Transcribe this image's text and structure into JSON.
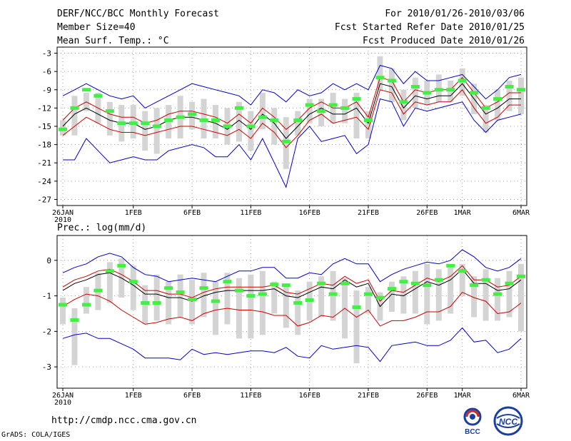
{
  "header": {
    "title": "DERF/NCC/BCC Monthly Forecast",
    "member_size": "Member Size=40",
    "variable": "Mean Surf. Temp.: °C",
    "period": "For 2010/01/26-2010/03/06",
    "refer_date": "Fcst Started Refer Date 2010/01/25",
    "produced_date": "Fcst Produced Date 2010/01/26"
  },
  "footer": {
    "url": "http://cmdp.ncc.cma.gov.cn",
    "grads": "GrADS: COLA/IGES",
    "logo1_text": "BCC",
    "logo2_text": "NCC"
  },
  "colors": {
    "mean": "#000000",
    "spread": "#cc0000",
    "extreme": "#0000cc",
    "box": "#d4d4d4",
    "marker": "#44ee44"
  },
  "chart_data": [
    {
      "type": "line",
      "title": "Mean Surf. Temp.: °C",
      "x_start": "2010-01-26",
      "n_days": 40,
      "x_ticks": [
        "26JAN",
        "1FEB",
        "6FEB",
        "11FEB",
        "16FEB",
        "21FEB",
        "26FEB",
        "1MAR",
        "6MAR"
      ],
      "x_tick_days": [
        0,
        6,
        11,
        16,
        21,
        26,
        31,
        34,
        39
      ],
      "x_year_label": "2010",
      "ylim": [
        -28,
        -2
      ],
      "yticks": [
        -3,
        -6,
        -9,
        -12,
        -15,
        -18,
        -21,
        -24,
        -27
      ],
      "ytick_labels": [
        "-3",
        "-6",
        "-9",
        "-12",
        "-15",
        "-18",
        "-21",
        "-24",
        "-27"
      ],
      "series": [
        {
          "name": "max",
          "color": "#0000cc",
          "values": [
            -10,
            -9,
            -8,
            -9,
            -10,
            -10.5,
            -10,
            -12,
            -11,
            -10,
            -9,
            -8,
            -8.5,
            -9,
            -9.5,
            -10,
            -11.5,
            -9,
            -9.5,
            -11,
            -9,
            -10,
            -9.5,
            -8,
            -9,
            -8,
            -9,
            -5,
            -5.5,
            -8,
            -6,
            -7.5,
            -7.5,
            -7,
            -6.5,
            -8.5,
            -10.5,
            -9,
            -7,
            -6.5
          ]
        },
        {
          "name": "upper",
          "color": "#cc0000",
          "values": [
            -14,
            -12,
            -11,
            -12,
            -13,
            -13.5,
            -13.5,
            -14.5,
            -14,
            -13,
            -12.5,
            -12.5,
            -13,
            -13.5,
            -14.5,
            -13,
            -14.5,
            -12,
            -13.5,
            -15.5,
            -14,
            -12,
            -11,
            -12,
            -12,
            -11,
            -13.5,
            -7,
            -7.5,
            -11,
            -9,
            -9.5,
            -9,
            -9,
            -7,
            -9.5,
            -12,
            -11,
            -9.5,
            -9.5
          ]
        },
        {
          "name": "mean",
          "color": "#000000",
          "values": [
            -15,
            -13,
            -12,
            -13,
            -14,
            -14.5,
            -14.5,
            -15.5,
            -15,
            -14,
            -13.5,
            -13.5,
            -14,
            -14.5,
            -15.5,
            -14,
            -15.5,
            -13,
            -14.5,
            -17,
            -15,
            -13,
            -12,
            -13,
            -13,
            -12,
            -14.5,
            -8,
            -8.5,
            -12,
            -10,
            -10.5,
            -10,
            -10,
            -8,
            -10.5,
            -13,
            -12,
            -10.5,
            -10.5
          ]
        },
        {
          "name": "lower",
          "color": "#cc0000",
          "values": [
            -16.5,
            -15,
            -13.5,
            -14.5,
            -15.5,
            -16,
            -16,
            -16.5,
            -16,
            -15.5,
            -15,
            -15,
            -15.5,
            -16,
            -16.5,
            -15.5,
            -17,
            -14.5,
            -16,
            -18.5,
            -16.5,
            -14,
            -13,
            -14.5,
            -14,
            -13.5,
            -15.5,
            -9,
            -9.5,
            -13,
            -11,
            -11.5,
            -11,
            -11,
            -9,
            -12,
            -14.5,
            -13.5,
            -11.5,
            -11.5
          ]
        },
        {
          "name": "min",
          "color": "#0000cc",
          "values": [
            -20.5,
            -20.5,
            -17,
            -19,
            -21,
            -20.5,
            -20,
            -20.5,
            -20.5,
            -19,
            -18.5,
            -18,
            -18.5,
            -20,
            -20,
            -18,
            -20.5,
            -17,
            -21,
            -25,
            -17,
            -15,
            -17.5,
            -17,
            -16.5,
            -19.5,
            -18,
            -10.5,
            -11,
            -15,
            -12,
            -12.5,
            -12,
            -11.5,
            -11,
            -14,
            -16,
            -14,
            -13.5,
            -13
          ]
        }
      ],
      "boxes_low": [
        -16.5,
        -16.5,
        -12.5,
        -14.5,
        -16.5,
        -17.5,
        -17,
        -19,
        -19.5,
        -17,
        -17,
        -15.5,
        -17,
        -17,
        -18,
        -17.5,
        -19,
        -15.5,
        -18,
        -22,
        -16.5,
        -14.5,
        -15,
        -14.5,
        -14.5,
        -17,
        -17,
        -9,
        -11,
        -14,
        -12,
        -11.5,
        -11,
        -11,
        -10,
        -13,
        -16,
        -14,
        -12.5,
        -13
      ],
      "boxes_high": [
        -14,
        -10,
        -9.5,
        -9.5,
        -11,
        -11.5,
        -11.5,
        -12.5,
        -12,
        -11.5,
        -10,
        -11,
        -10.5,
        -11.5,
        -12,
        -11,
        -12.5,
        -9.5,
        -12,
        -13.5,
        -12.5,
        -10.5,
        -10.5,
        -9.5,
        -10.5,
        -9.5,
        -12.5,
        -3.5,
        -5.5,
        -9,
        -7,
        -7.5,
        -6.5,
        -7.5,
        -5.5,
        -8,
        -11.5,
        -9,
        -7.5,
        -7
      ],
      "markers": [
        -15.5,
        -12,
        -9,
        -10,
        -12.5,
        -14.5,
        -14.5,
        -14.5,
        -15,
        -14,
        -13.5,
        -13,
        -14,
        -14,
        -15,
        -12,
        -15,
        -13.5,
        -14,
        -17.5,
        -14,
        -11.5,
        -12.5,
        -11.5,
        -12,
        -10.5,
        -14,
        -7,
        -7.5,
        -11,
        -8.5,
        -9.5,
        -9,
        -9,
        -7.5,
        -9.5,
        -12,
        -10.5,
        -8.5,
        -9
      ]
    },
    {
      "type": "line",
      "title": "Prec.: log(mm/d)",
      "x_start": "2010-01-26",
      "n_days": 40,
      "x_ticks": [
        "26JAN",
        "1FEB",
        "6FEB",
        "11FEB",
        "16FEB",
        "21FEB",
        "26FEB",
        "1MAR",
        "6MAR"
      ],
      "x_tick_days": [
        0,
        6,
        11,
        16,
        21,
        26,
        31,
        34,
        39
      ],
      "x_year_label": "2010",
      "ylim": [
        -3.6,
        0.7
      ],
      "yticks": [
        0,
        -1,
        -2,
        -3
      ],
      "ytick_labels": [
        "0",
        "-1",
        "-2",
        "-3"
      ],
      "series": [
        {
          "name": "max",
          "color": "#0000cc",
          "values": [
            -0.35,
            -0.2,
            -0.1,
            0.1,
            0.2,
            0.1,
            -0.2,
            -0.4,
            -0.45,
            -0.6,
            -0.55,
            -0.5,
            -0.55,
            -0.6,
            -0.45,
            -0.3,
            -0.3,
            -0.2,
            -0.2,
            -0.5,
            -0.5,
            -0.35,
            -0.4,
            -0.1,
            0.05,
            -0.1,
            -0.1,
            -0.6,
            -0.4,
            -0.25,
            -0.15,
            -0.05,
            -0.1,
            0,
            0.3,
            0.1,
            -0.2,
            -0.3,
            -0.2,
            0.05
          ]
        },
        {
          "name": "upper",
          "color": "#cc0000",
          "values": [
            -0.75,
            -0.55,
            -0.45,
            -0.3,
            -0.25,
            -0.4,
            -0.6,
            -0.85,
            -0.85,
            -0.95,
            -0.95,
            -1.05,
            -0.9,
            -0.8,
            -0.75,
            -0.75,
            -0.75,
            -0.75,
            -0.7,
            -0.9,
            -0.95,
            -0.8,
            -0.65,
            -0.7,
            -0.45,
            -0.65,
            -0.55,
            -1.15,
            -0.85,
            -0.9,
            -0.7,
            -0.5,
            -0.6,
            -0.45,
            -0.15,
            -0.55,
            -0.55,
            -0.75,
            -0.7,
            -0.45
          ]
        },
        {
          "name": "mean",
          "color": "#000000",
          "values": [
            -0.85,
            -0.65,
            -0.55,
            -0.4,
            -0.35,
            -0.5,
            -0.7,
            -0.95,
            -0.95,
            -1.05,
            -1.05,
            -1.15,
            -1,
            -0.9,
            -0.85,
            -0.85,
            -0.85,
            -0.85,
            -0.8,
            -1,
            -1.05,
            -0.9,
            -0.75,
            -0.8,
            -0.55,
            -0.75,
            -0.65,
            -1.3,
            -0.95,
            -1,
            -0.8,
            -0.6,
            -0.7,
            -0.55,
            -0.25,
            -0.65,
            -0.65,
            -0.85,
            -0.8,
            -0.55
          ]
        },
        {
          "name": "lower",
          "color": "#cc0000",
          "values": [
            -1.3,
            -1.1,
            -0.95,
            -1,
            -1.15,
            -1.4,
            -1.6,
            -1.8,
            -1.75,
            -1.65,
            -1.6,
            -1.7,
            -1.5,
            -1.4,
            -1.35,
            -1.4,
            -1.4,
            -1.45,
            -1.55,
            -1.55,
            -1.85,
            -1.75,
            -1.55,
            -1.6,
            -1.35,
            -1.6,
            -1.4,
            -1.85,
            -1.7,
            -1.7,
            -1.6,
            -1.45,
            -1.45,
            -1.3,
            -0.9,
            -1.05,
            -1.15,
            -1.5,
            -1.45,
            -1.2
          ]
        },
        {
          "name": "min",
          "color": "#0000cc",
          "values": [
            -2.2,
            -2.1,
            -2.05,
            -2.2,
            -2.2,
            -2.35,
            -2.5,
            -2.75,
            -2.75,
            -2.75,
            -2.8,
            -2.5,
            -2.65,
            -2.6,
            -2.65,
            -2.6,
            -2.55,
            -2.55,
            -2.6,
            -2.45,
            -2.7,
            -2.75,
            -2.4,
            -2.5,
            -2.45,
            -2.4,
            -2.45,
            -2.85,
            -2.4,
            -2.35,
            -2.3,
            -2.4,
            -2.4,
            -2.25,
            -1.9,
            -2.3,
            -2.25,
            -2.6,
            -2.5,
            -2.2
          ]
        },
        {
          "name": "mean_ref",
          "color": "#000000",
          "values": [
            -0.85,
            -0.65,
            -0.55,
            -0.4,
            -0.35,
            -0.5,
            -0.7,
            -0.95,
            -0.95,
            -1.05,
            -1.05,
            -1.15,
            -1,
            -0.9,
            -0.85,
            -0.85,
            -0.85,
            -0.85,
            -0.8,
            -1,
            -1.05,
            -0.9,
            -0.75,
            -0.8,
            -0.55,
            -0.75,
            -0.65,
            -1.3,
            -0.95,
            -1,
            -0.8,
            -0.6,
            -0.7,
            -0.55,
            -0.25,
            -0.65,
            -0.65,
            -0.85,
            -0.8,
            -0.55
          ]
        }
      ],
      "boxes_low": [
        -1.8,
        -2.95,
        -1.5,
        -1.4,
        -1.2,
        -1.05,
        -1.4,
        -1.8,
        -1.7,
        -1.8,
        -1.6,
        -1.8,
        -1.6,
        -2.1,
        -1.8,
        -2.2,
        -2.2,
        -2.1,
        -1.5,
        -1.9,
        -2.1,
        -1.7,
        -1.6,
        -1.7,
        -2.2,
        -2.9,
        -1.5,
        -1.7,
        -1.45,
        -1.5,
        -1.5,
        -1.8,
        -1.7,
        -1.5,
        -1,
        -1.6,
        -1.7,
        -1.7,
        -1.6,
        -2
      ],
      "boxes_high": [
        -1.05,
        -1.35,
        -0.75,
        -0.35,
        -0.05,
        0.05,
        -0.15,
        -0.7,
        -0.4,
        -0.6,
        -0.4,
        -0.55,
        -0.35,
        -0.6,
        -0.35,
        -0.5,
        -0.4,
        -0.3,
        -0.6,
        -0.7,
        -0.85,
        -0.6,
        -0.45,
        -0.3,
        -0.5,
        -0.85,
        -0.75,
        -0.9,
        -0.6,
        -0.45,
        -0.3,
        -0.1,
        -0.25,
        -0.2,
        -0.1,
        -0.45,
        -0.25,
        -0.5,
        -0.3,
        -0.1
      ],
      "markers": [
        -1.25,
        -1.68,
        -1.25,
        -0.85,
        -0.3,
        -0.15,
        -0.6,
        -1.2,
        -1.2,
        -0.78,
        -0.9,
        -1.1,
        -0.78,
        -1.15,
        -0.6,
        -0.85,
        -1,
        -0.95,
        -0.68,
        -0.7,
        -1.2,
        -1.12,
        -0.65,
        -0.95,
        -0.65,
        -1.32,
        -0.95,
        -1.05,
        -0.8,
        -0.6,
        -0.65,
        -0.7,
        -0.55,
        -0.15,
        -0.3,
        -0.7,
        -0.55,
        -0.95,
        -0.65,
        -0.45
      ]
    }
  ]
}
